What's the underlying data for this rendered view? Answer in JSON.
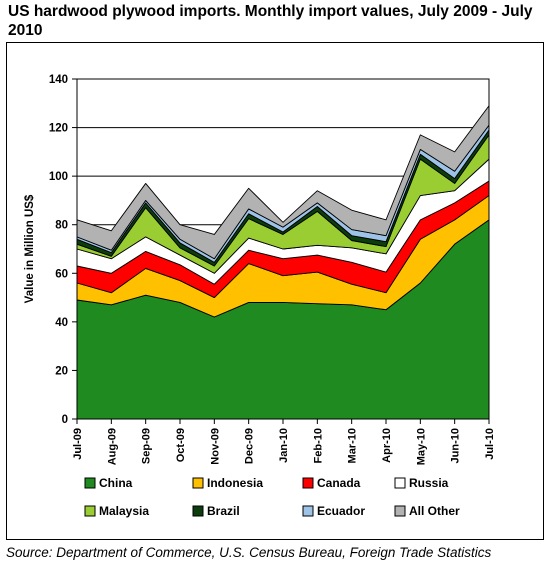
{
  "title": "US hardwood plywood imports. Monthly import values, July 2009 - July 2010",
  "source": "Source: Department of Commerce, U.S. Census Bureau, Foreign Trade Statistics",
  "chart_data": {
    "type": "area",
    "stacked": true,
    "categories": [
      "Jul-09",
      "Aug-09",
      "Sep-09",
      "Oct-09",
      "Nov-09",
      "Dec-09",
      "Jan-10",
      "Feb-10",
      "Mar-10",
      "Apr-10",
      "May-10",
      "Jun-10",
      "Jul-10"
    ],
    "ylabel": "Value in Million US$",
    "xlabel": "",
    "ylim": [
      0,
      140
    ],
    "yticks": [
      0,
      20,
      40,
      60,
      80,
      100,
      120,
      140
    ],
    "grid": true,
    "legend_position": "bottom",
    "series": [
      {
        "name": "China",
        "color": "#1f8a1f",
        "values": [
          49,
          47,
          51,
          48,
          42,
          48,
          48,
          47.5,
          47,
          45,
          56,
          72,
          82
        ]
      },
      {
        "name": "Indonesia",
        "color": "#ffc000",
        "values": [
          7,
          5,
          11,
          9,
          8,
          16,
          11,
          13,
          8.5,
          7,
          18,
          10,
          10
        ]
      },
      {
        "name": "Canada",
        "color": "#ff0000",
        "values": [
          7,
          8,
          7,
          6.5,
          5.5,
          5.5,
          7,
          7,
          9,
          8.5,
          8,
          7,
          6
        ]
      },
      {
        "name": "Russia",
        "color": "#ffffff",
        "values": [
          7,
          6,
          6,
          4,
          4.5,
          5,
          4,
          4,
          6,
          7.5,
          10,
          5,
          9
        ]
      },
      {
        "name": "Malaysia",
        "color": "#9acd32",
        "values": [
          2,
          1,
          12,
          3,
          3,
          8,
          6,
          14,
          3,
          3,
          15,
          3,
          10
        ]
      },
      {
        "name": "Brazil",
        "color": "#0d3d0d",
        "values": [
          2,
          1.5,
          2,
          2,
          1.5,
          2,
          1,
          2,
          2,
          2,
          2,
          2,
          2
        ]
      },
      {
        "name": "Ecuador",
        "color": "#9dc3e6",
        "values": [
          1,
          1,
          1,
          1.5,
          1.5,
          2,
          2,
          1.5,
          2.5,
          2.5,
          2,
          3,
          2
        ]
      },
      {
        "name": "All Other",
        "color": "#b2b2b2",
        "values": [
          7,
          8,
          7,
          6,
          10,
          8.5,
          2,
          5,
          8,
          6.5,
          6,
          8,
          8
        ]
      }
    ]
  }
}
